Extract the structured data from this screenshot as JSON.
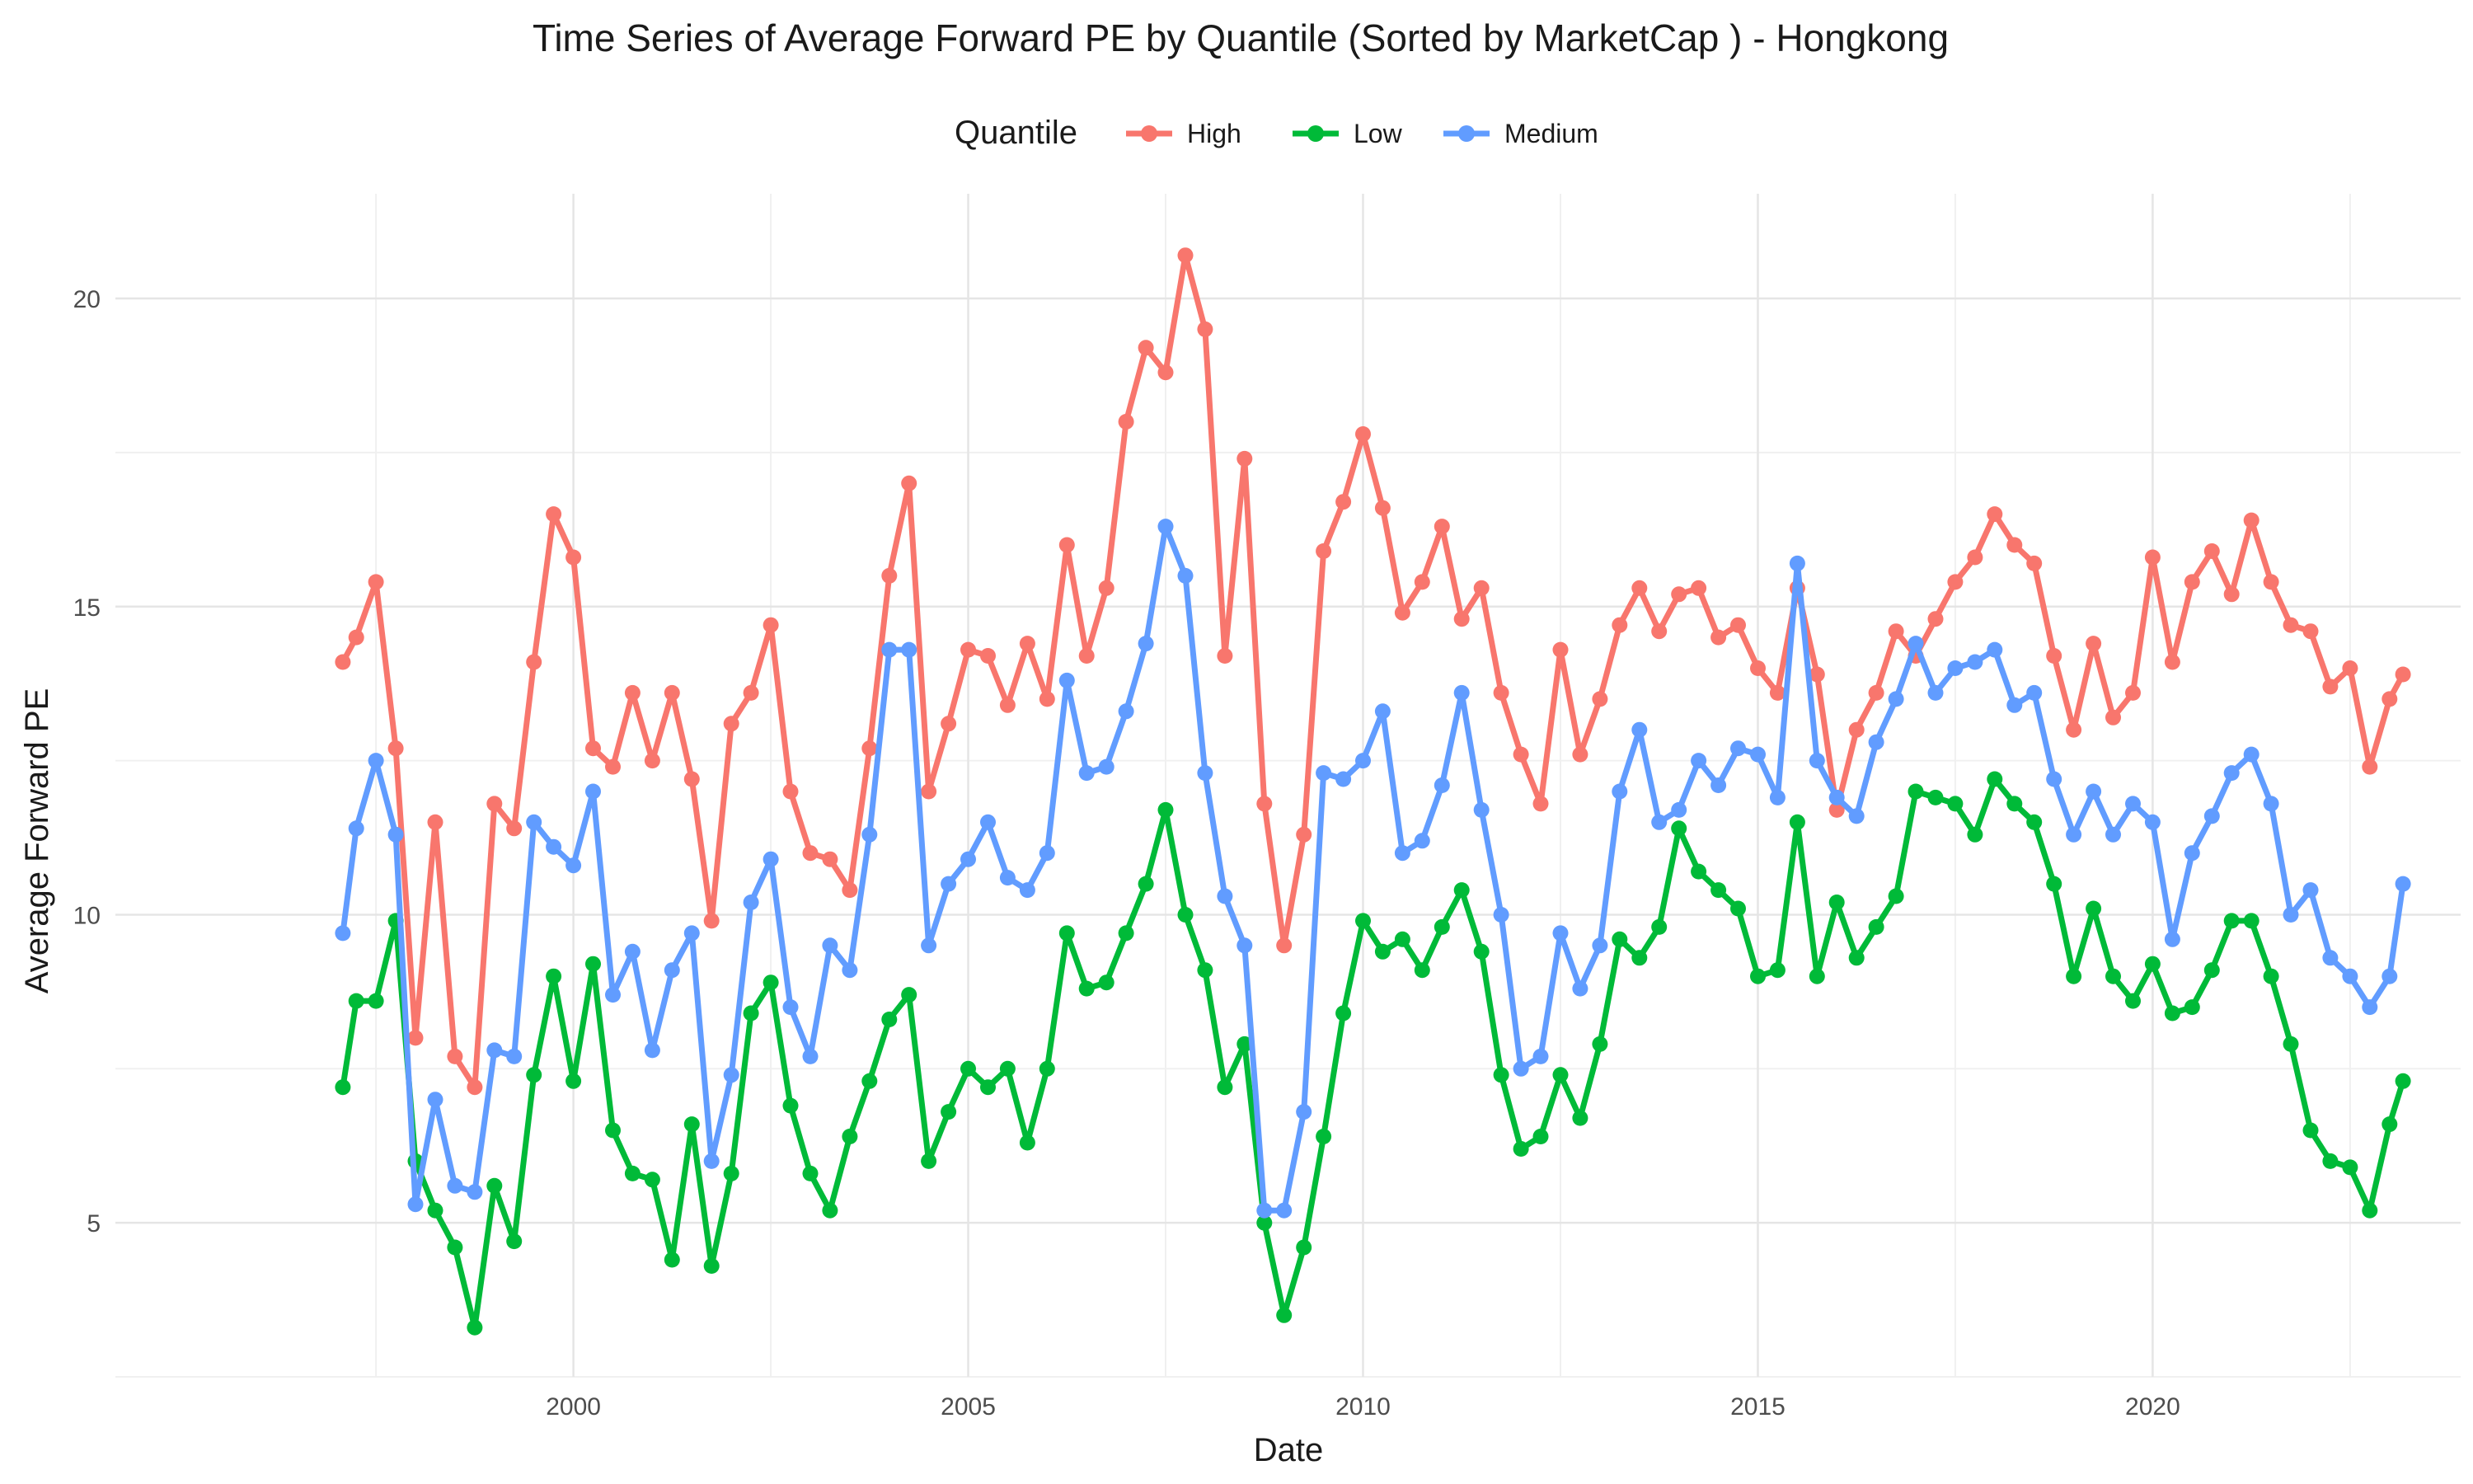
{
  "chart_data": {
    "type": "line",
    "title": "Time Series of Average Forward PE by Quantile (Sorted by MarketCap ) - Hongkong",
    "xlabel": "Date",
    "ylabel": "Average Forward PE",
    "x_ticks": [
      2000,
      2005,
      2010,
      2015,
      2020
    ],
    "y_ticks": [
      5,
      10,
      15,
      20
    ],
    "xlim": [
      1994.2,
      2023.9
    ],
    "ylim": [
      2.5,
      21.7
    ],
    "grid": true,
    "legend": {
      "title": "Quantile",
      "position": "top"
    },
    "series": [
      {
        "name": "High",
        "color": "#F8766D",
        "x": [
          1997.08,
          1997.25,
          1997.5,
          1997.75,
          1998.0,
          1998.25,
          1998.5,
          1998.75,
          1999.0,
          1999.25,
          1999.5,
          1999.75,
          2000.0,
          2000.25,
          2000.5,
          2000.75,
          2001.0,
          2001.25,
          2001.5,
          2001.75,
          2002.0,
          2002.25,
          2002.5,
          2002.75,
          2003.0,
          2003.25,
          2003.5,
          2003.75,
          2004.0,
          2004.25,
          2004.5,
          2004.75,
          2005.0,
          2005.25,
          2005.5,
          2005.75,
          2006.0,
          2006.25,
          2006.5,
          2006.75,
          2007.0,
          2007.25,
          2007.5,
          2007.75,
          2008.0,
          2008.25,
          2008.5,
          2008.75,
          2009.0,
          2009.25,
          2009.5,
          2009.75,
          2010.0,
          2010.25,
          2010.5,
          2010.75,
          2011.0,
          2011.25,
          2011.5,
          2011.75,
          2012.0,
          2012.25,
          2012.5,
          2012.75,
          2013.0,
          2013.25,
          2013.5,
          2013.75,
          2014.0,
          2014.25,
          2014.5,
          2014.75,
          2015.0,
          2015.25,
          2015.5,
          2015.75,
          2016.0,
          2016.25,
          2016.5,
          2016.75,
          2017.0,
          2017.25,
          2017.5,
          2017.75,
          2018.0,
          2018.25,
          2018.5,
          2018.75,
          2019.0,
          2019.25,
          2019.5,
          2019.75,
          2020.0,
          2020.25,
          2020.5,
          2020.75,
          2021.0,
          2021.25,
          2021.5,
          2021.75,
          2022.0,
          2022.25,
          2022.5,
          2022.75,
          2023.0,
          2023.17
        ],
        "values": [
          14.1,
          14.5,
          15.4,
          12.7,
          8.0,
          11.5,
          7.7,
          7.2,
          11.8,
          11.4,
          14.1,
          16.5,
          15.8,
          12.7,
          12.4,
          13.6,
          12.5,
          13.6,
          12.2,
          9.9,
          13.1,
          13.6,
          14.7,
          12.0,
          11.0,
          10.9,
          10.4,
          12.7,
          15.5,
          17.0,
          12.0,
          13.1,
          14.3,
          14.2,
          13.4,
          14.4,
          13.5,
          16.0,
          14.2,
          15.3,
          18.0,
          19.2,
          18.8,
          20.7,
          19.5,
          14.2,
          17.4,
          11.8,
          9.5,
          11.3,
          15.9,
          16.7,
          17.8,
          16.6,
          14.9,
          15.4,
          16.3,
          14.8,
          15.3,
          13.6,
          12.6,
          11.8,
          14.3,
          12.6,
          13.5,
          14.7,
          15.3,
          14.6,
          15.2,
          15.3,
          14.5,
          14.7,
          14.0,
          13.6,
          15.3,
          13.9,
          11.7,
          13.0,
          13.6,
          14.6,
          14.2,
          14.8,
          15.4,
          15.8,
          16.5,
          16.0,
          15.7,
          14.2,
          13.0,
          14.4,
          13.2,
          13.6,
          15.8,
          14.1,
          15.4,
          15.9,
          15.2,
          16.4,
          15.4,
          14.7,
          14.6,
          13.7,
          14.0,
          12.4,
          13.5,
          13.9
        ]
      },
      {
        "name": "Low",
        "color": "#00BA38",
        "x": [
          1997.08,
          1997.25,
          1997.5,
          1997.75,
          1998.0,
          1998.25,
          1998.5,
          1998.75,
          1999.0,
          1999.25,
          1999.5,
          1999.75,
          2000.0,
          2000.25,
          2000.5,
          2000.75,
          2001.0,
          2001.25,
          2001.5,
          2001.75,
          2002.0,
          2002.25,
          2002.5,
          2002.75,
          2003.0,
          2003.25,
          2003.5,
          2003.75,
          2004.0,
          2004.25,
          2004.5,
          2004.75,
          2005.0,
          2005.25,
          2005.5,
          2005.75,
          2006.0,
          2006.25,
          2006.5,
          2006.75,
          2007.0,
          2007.25,
          2007.5,
          2007.75,
          2008.0,
          2008.25,
          2008.5,
          2008.75,
          2009.0,
          2009.25,
          2009.5,
          2009.75,
          2010.0,
          2010.25,
          2010.5,
          2010.75,
          2011.0,
          2011.25,
          2011.5,
          2011.75,
          2012.0,
          2012.25,
          2012.5,
          2012.75,
          2013.0,
          2013.25,
          2013.5,
          2013.75,
          2014.0,
          2014.25,
          2014.5,
          2014.75,
          2015.0,
          2015.25,
          2015.5,
          2015.75,
          2016.0,
          2016.25,
          2016.5,
          2016.75,
          2017.0,
          2017.25,
          2017.5,
          2017.75,
          2018.0,
          2018.25,
          2018.5,
          2018.75,
          2019.0,
          2019.25,
          2019.5,
          2019.75,
          2020.0,
          2020.25,
          2020.5,
          2020.75,
          2021.0,
          2021.25,
          2021.5,
          2021.75,
          2022.0,
          2022.25,
          2022.5,
          2022.75,
          2023.0,
          2023.17
        ],
        "values": [
          7.2,
          8.6,
          8.6,
          9.9,
          6.0,
          5.2,
          4.6,
          3.3,
          5.6,
          4.7,
          7.4,
          9.0,
          7.3,
          9.2,
          6.5,
          5.8,
          5.7,
          4.4,
          6.6,
          4.3,
          5.8,
          8.4,
          8.9,
          6.9,
          5.8,
          5.2,
          6.4,
          7.3,
          8.3,
          8.7,
          6.0,
          6.8,
          7.5,
          7.2,
          7.5,
          6.3,
          7.5,
          9.7,
          8.8,
          8.9,
          9.7,
          10.5,
          11.7,
          10.0,
          9.1,
          7.2,
          7.9,
          5.0,
          3.5,
          4.6,
          6.4,
          8.4,
          9.9,
          9.4,
          9.6,
          9.1,
          9.8,
          10.4,
          9.4,
          7.4,
          6.2,
          6.4,
          7.4,
          6.7,
          7.9,
          9.6,
          9.3,
          9.8,
          11.4,
          10.7,
          10.4,
          10.1,
          9.0,
          9.1,
          11.5,
          9.0,
          10.2,
          9.3,
          9.8,
          10.3,
          12.0,
          11.9,
          11.8,
          11.3,
          12.2,
          11.8,
          11.5,
          10.5,
          9.0,
          10.1,
          9.0,
          8.6,
          9.2,
          8.4,
          8.5,
          9.1,
          9.9,
          9.9,
          9.0,
          7.9,
          6.5,
          6.0,
          5.9,
          5.2,
          6.6,
          7.3
        ]
      },
      {
        "name": "Medium",
        "color": "#619CFF",
        "x": [
          1997.08,
          1997.25,
          1997.5,
          1997.75,
          1998.0,
          1998.25,
          1998.5,
          1998.75,
          1999.0,
          1999.25,
          1999.5,
          1999.75,
          2000.0,
          2000.25,
          2000.5,
          2000.75,
          2001.0,
          2001.25,
          2001.5,
          2001.75,
          2002.0,
          2002.25,
          2002.5,
          2002.75,
          2003.0,
          2003.25,
          2003.5,
          2003.75,
          2004.0,
          2004.25,
          2004.5,
          2004.75,
          2005.0,
          2005.25,
          2005.5,
          2005.75,
          2006.0,
          2006.25,
          2006.5,
          2006.75,
          2007.0,
          2007.25,
          2007.5,
          2007.75,
          2008.0,
          2008.25,
          2008.5,
          2008.75,
          2009.0,
          2009.25,
          2009.5,
          2009.75,
          2010.0,
          2010.25,
          2010.5,
          2010.75,
          2011.0,
          2011.25,
          2011.5,
          2011.75,
          2012.0,
          2012.25,
          2012.5,
          2012.75,
          2013.0,
          2013.25,
          2013.5,
          2013.75,
          2014.0,
          2014.25,
          2014.5,
          2014.75,
          2015.0,
          2015.25,
          2015.5,
          2015.75,
          2016.0,
          2016.25,
          2016.5,
          2016.75,
          2017.0,
          2017.25,
          2017.5,
          2017.75,
          2018.0,
          2018.25,
          2018.5,
          2018.75,
          2019.0,
          2019.25,
          2019.5,
          2019.75,
          2020.0,
          2020.25,
          2020.5,
          2020.75,
          2021.0,
          2021.25,
          2021.5,
          2021.75,
          2022.0,
          2022.25,
          2022.5,
          2022.75,
          2023.0,
          2023.17
        ],
        "values": [
          9.7,
          11.4,
          12.5,
          11.3,
          5.3,
          7.0,
          5.6,
          5.5,
          7.8,
          7.7,
          11.5,
          11.1,
          10.8,
          12.0,
          8.7,
          9.4,
          7.8,
          9.1,
          9.7,
          6.0,
          7.4,
          10.2,
          10.9,
          8.5,
          7.7,
          9.5,
          9.1,
          11.3,
          14.3,
          14.3,
          9.5,
          10.5,
          10.9,
          11.5,
          10.6,
          10.4,
          11.0,
          13.8,
          12.3,
          12.4,
          13.3,
          14.4,
          16.3,
          15.5,
          12.3,
          10.3,
          9.5,
          5.2,
          5.2,
          6.8,
          12.3,
          12.2,
          12.5,
          13.3,
          11.0,
          11.2,
          12.1,
          13.6,
          11.7,
          10.0,
          7.5,
          7.7,
          9.7,
          8.8,
          9.5,
          12.0,
          13.0,
          11.5,
          11.7,
          12.5,
          12.1,
          12.7,
          12.6,
          11.9,
          15.7,
          12.5,
          11.9,
          11.6,
          12.8,
          13.5,
          14.4,
          13.6,
          14.0,
          14.1,
          14.3,
          13.4,
          13.6,
          12.2,
          11.3,
          12.0,
          11.3,
          11.8,
          11.5,
          9.6,
          11.0,
          11.6,
          12.3,
          12.6,
          11.8,
          10.0,
          10.4,
          9.3,
          9.0,
          8.5,
          9.0,
          10.5
        ]
      }
    ]
  }
}
